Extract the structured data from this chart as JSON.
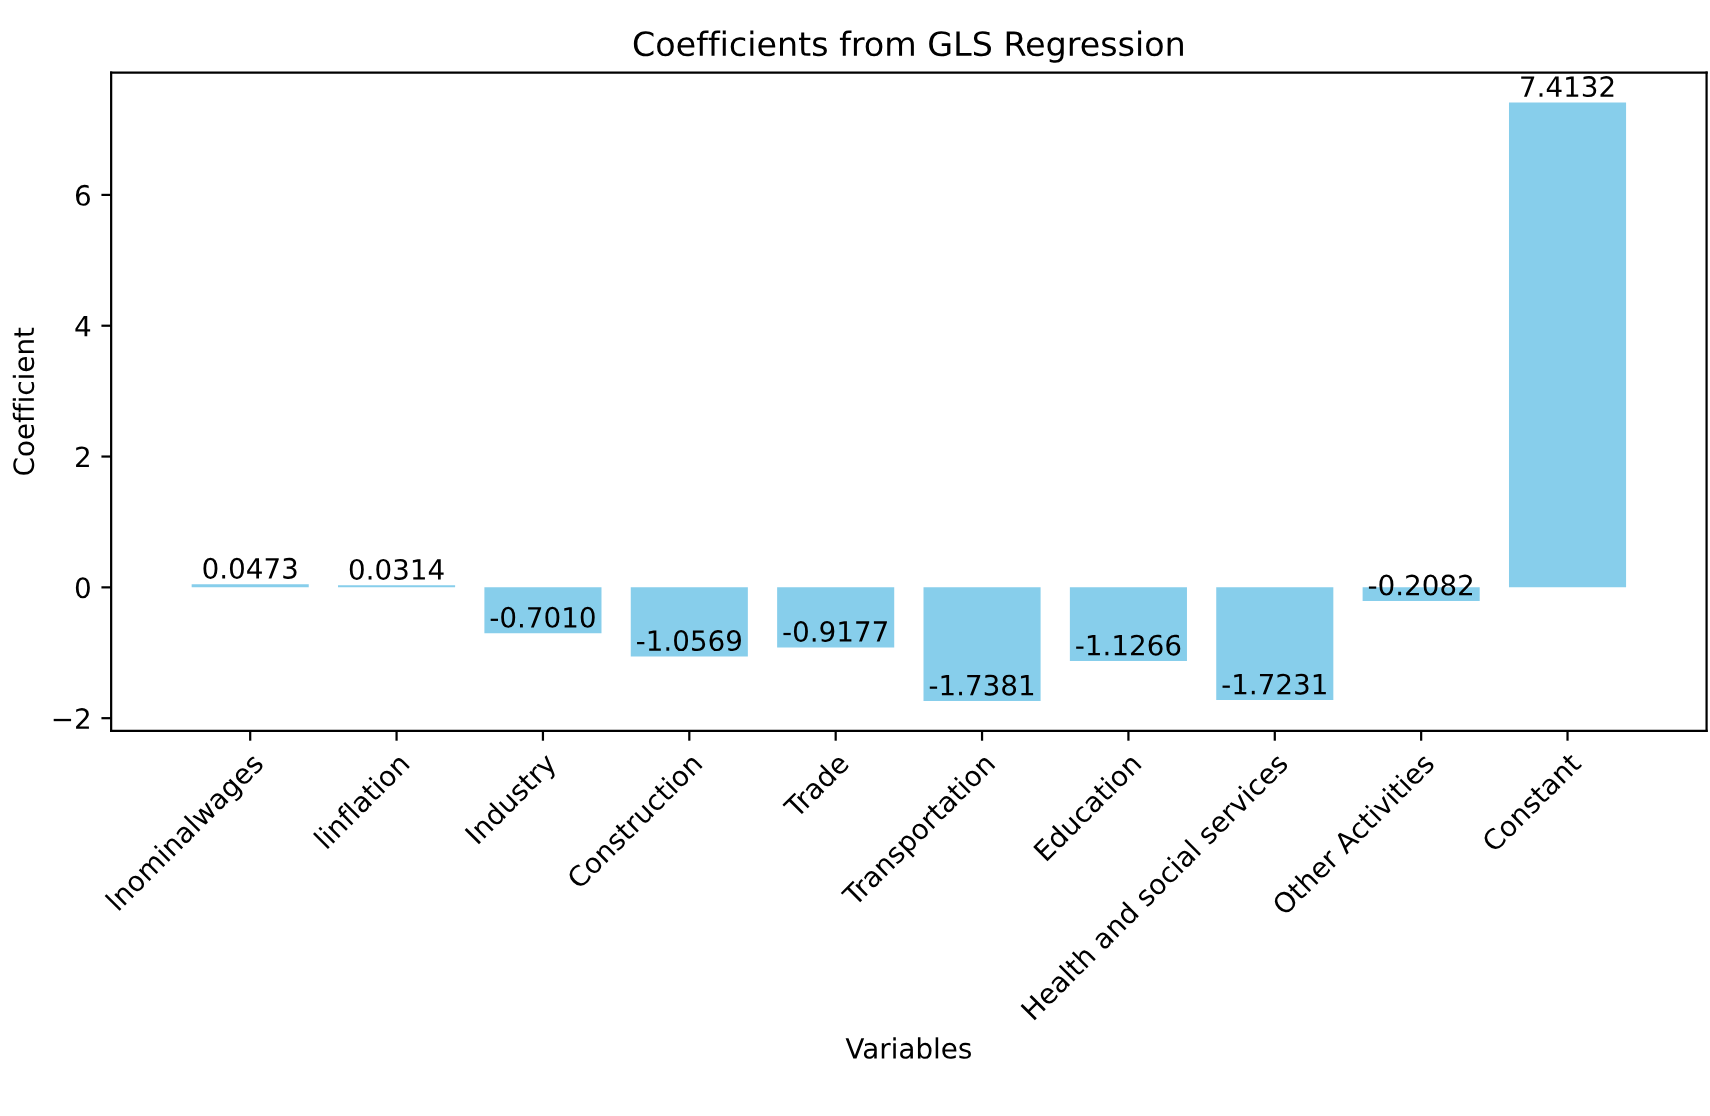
{
  "chart_data": {
    "type": "bar",
    "title": "Coefficients from GLS Regression",
    "xlabel": "Variables",
    "ylabel": "Coefficient",
    "categories": [
      "lnominalwages",
      "linflation",
      "Industry",
      "Construction",
      "Trade",
      "Transportation",
      "Education",
      "Health and social services",
      "Other Activities",
      "Constant"
    ],
    "values": [
      0.0473,
      0.0314,
      -0.701,
      -1.0569,
      -0.9177,
      -1.7381,
      -1.1266,
      -1.7231,
      -0.2082,
      7.4132
    ],
    "value_labels": [
      "0.0473",
      "0.0314",
      "-0.7010",
      "-1.0569",
      "-0.9177",
      "-1.7381",
      "-1.1266",
      "-1.7231",
      "-0.2082",
      "7.4132"
    ],
    "color": "#87ceeb",
    "ylim": [
      -2.1957,
      7.8708
    ],
    "yticks": [
      {
        "value": -2,
        "label": "−2"
      },
      0,
      2,
      4,
      6
    ],
    "grid": false,
    "legend": false
  }
}
